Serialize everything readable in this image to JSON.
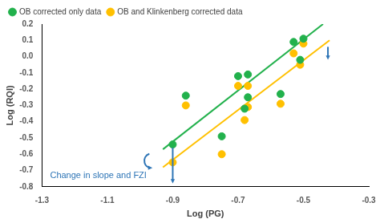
{
  "chart_data": {
    "type": "scatter",
    "x_label": "Log (PG)",
    "y_label": "Log (RQI)",
    "xlim": [
      -1.3,
      -0.3
    ],
    "xticks": [
      -1.3,
      -1.1,
      -0.9,
      -0.7,
      -0.5,
      -0.3
    ],
    "ylim": [
      -0.8,
      0.2
    ],
    "yticks": [
      -0.8,
      -0.7,
      -0.6,
      -0.5,
      -0.4,
      -0.3,
      -0.2,
      -0.1,
      {
        "value": 0,
        "label": "0.0"
      },
      0.1,
      0.2
    ],
    "grid": false,
    "legend": "top left",
    "annotations": [
      "Change in slope and FZI"
    ],
    "series": [
      {
        "name": "OB corrected only data",
        "color": "#22b14c",
        "marker": "circle",
        "x": [
          -0.9,
          -0.86,
          -0.75,
          -0.7,
          -0.68,
          -0.67,
          -0.67,
          -0.57,
          -0.53,
          -0.51,
          -0.5
        ],
        "values": [
          -0.54,
          -0.24,
          -0.49,
          -0.12,
          -0.32,
          -0.11,
          -0.25,
          -0.23,
          0.09,
          -0.02,
          0.11
        ],
        "trendline": {
          "x": [
            -0.93,
            -0.44
          ],
          "values": [
            -0.57,
            0.2
          ]
        }
      },
      {
        "name": "OB and Klinkenberg corrected data",
        "color": "#ffc000",
        "marker": "circle",
        "x": [
          -0.9,
          -0.86,
          -0.75,
          -0.7,
          -0.68,
          -0.67,
          -0.67,
          -0.57,
          -0.53,
          -0.51,
          -0.5
        ],
        "values": [
          -0.65,
          -0.3,
          -0.6,
          -0.18,
          -0.39,
          -0.18,
          -0.31,
          -0.29,
          0.02,
          -0.05,
          0.08
        ],
        "trendline": {
          "x": [
            -0.93,
            -0.42
          ],
          "values": [
            -0.68,
            0.1
          ]
        }
      }
    ]
  }
}
